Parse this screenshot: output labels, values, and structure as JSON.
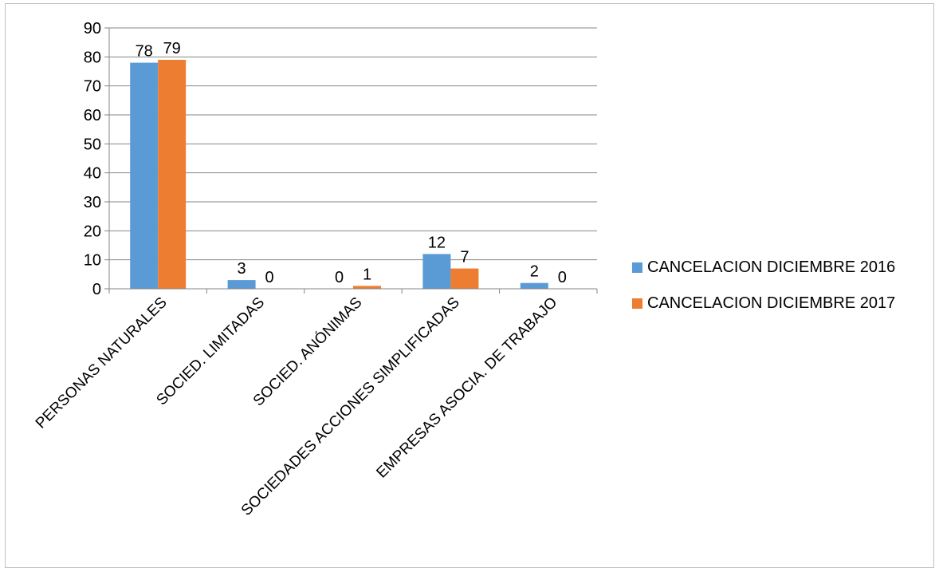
{
  "chart_data": {
    "type": "bar",
    "title": "",
    "xlabel": "",
    "ylabel": "",
    "ylim": [
      0,
      90
    ],
    "yticks": [
      0,
      10,
      20,
      30,
      40,
      50,
      60,
      70,
      80,
      90
    ],
    "grid": true,
    "legend_position": "right",
    "categories": [
      "PERSONAS NATURALES",
      "SOCIED. LIMITADAS",
      "SOCIED. ANÓNIMAS",
      "SOCIEDADES ACCIONES SIMPLIFICADAS",
      "EMPRESAS ASOCIA. DE TRABAJO"
    ],
    "series": [
      {
        "name": "CANCELACION DICIEMBRE 2016",
        "color": "#5b9bd5",
        "values": [
          78,
          3,
          0,
          12,
          2
        ]
      },
      {
        "name": "CANCELACION DICIEMBRE 2017",
        "color": "#ed7d31",
        "values": [
          79,
          0,
          1,
          7,
          0
        ]
      }
    ]
  }
}
